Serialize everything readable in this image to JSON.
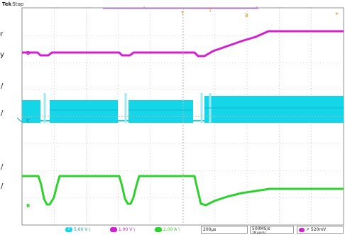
{
  "status": {
    "brand": "Tek",
    "state": "Stop"
  },
  "left_labels": [
    "r",
    "y",
    "/",
    "/",
    "/",
    "/"
  ],
  "channels": [
    {
      "marker": "D",
      "color": "#d020d0",
      "scale": "1.00 V",
      "slope": "\\"
    },
    {
      "marker": "C",
      "color": "#14d6e8",
      "scale": "5.00 V",
      "slope": "\\"
    },
    {
      "marker": "B",
      "color": "#2fd12f",
      "scale": "2.00 A",
      "slope": "\\"
    }
  ],
  "markers": {
    "trigger": "T",
    "top_marker": "T",
    "ref_marker": "B"
  },
  "footer": {
    "ch2_number": "2",
    "ch2_scale": "5.00 V",
    "ch2_slope": "\\",
    "ch4_scale": "1.00 V",
    "ch4_slope": "\\",
    "ch3_scale": "2.00 A",
    "ch3_slope": "\\",
    "timebase": "200µs",
    "sample_rate": "500MS/s",
    "record_length": "1M points",
    "trigger_level": "520mV",
    "trigger_slope": "↗"
  },
  "colors": {
    "grid": "#b8b8b8",
    "magenta": "#d020d0",
    "cyan": "#14d6e8",
    "green": "#2fd12f",
    "orange": "#e89020",
    "teal": "#1aa0a8"
  }
}
